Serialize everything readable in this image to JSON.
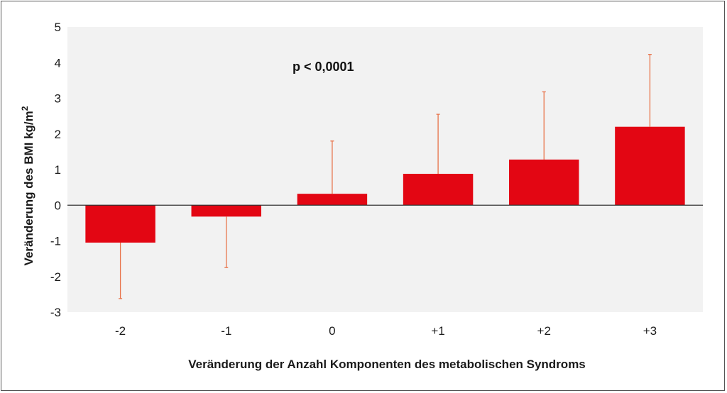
{
  "chart_data": {
    "type": "bar",
    "categories": [
      "-2",
      "-1",
      "0",
      "+1",
      "+2",
      "+3"
    ],
    "values": [
      -1.05,
      -0.32,
      0.32,
      0.88,
      1.28,
      2.2
    ],
    "error_bars": [
      {
        "category": "-2",
        "direction": "down",
        "end": -2.62
      },
      {
        "category": "-1",
        "direction": "down",
        "end": -1.75
      },
      {
        "category": "0",
        "direction": "up",
        "end": 1.8
      },
      {
        "category": "+1",
        "direction": "up",
        "end": 2.55
      },
      {
        "category": "+2",
        "direction": "up",
        "end": 3.18
      },
      {
        "category": "+3",
        "direction": "up",
        "end": 4.23
      }
    ],
    "ylim": [
      -3,
      5
    ],
    "yticks": [
      "5",
      "4",
      "3",
      "2",
      "1",
      "0",
      "-1",
      "-2",
      "-3"
    ],
    "xlabel": "Veränderung der Anzahl Komponenten des metabolischen Syndroms",
    "ylabel": "Veränderung des BMI kg/m",
    "ylabel_superscript": "2",
    "annotation": "p < 0,0001",
    "grid": false,
    "colors": {
      "bar": "#e30613",
      "error_bar": "#e8734a",
      "plot_background": "#f2f2f2"
    }
  }
}
